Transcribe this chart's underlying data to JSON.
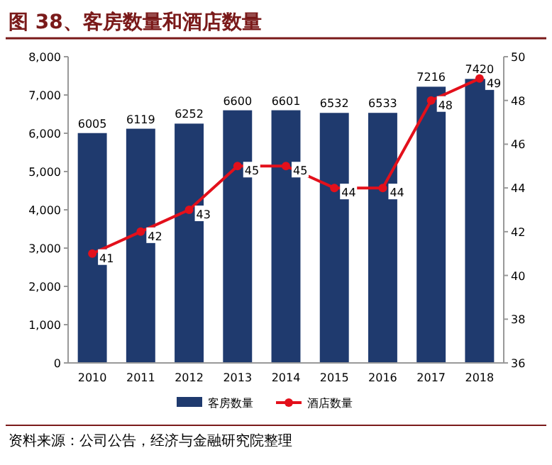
{
  "chart_data": {
    "type": "bar",
    "title": "图 38、客房数量和酒店数量",
    "categories": [
      "2010",
      "2011",
      "2012",
      "2013",
      "2014",
      "2015",
      "2016",
      "2017",
      "2018"
    ],
    "series": [
      {
        "name": "客房数量",
        "color": "#1f3a6e",
        "values": [
          6005,
          6119,
          6252,
          6600,
          6601,
          6532,
          6533,
          7216,
          7420
        ]
      },
      {
        "name": "酒店数量",
        "type": "line",
        "axis": "y2",
        "color": "#e3101b",
        "values": [
          41,
          42,
          43,
          45,
          45,
          44,
          44,
          48,
          49
        ]
      }
    ],
    "ylim": [
      0,
      8000
    ],
    "yticks": [
      {
        "value": 0,
        "label": "0"
      },
      {
        "value": 1000,
        "label": "1,000"
      },
      {
        "value": 2000,
        "label": "2,000"
      },
      {
        "value": 3000,
        "label": "3,000"
      },
      {
        "value": 4000,
        "label": "4,000"
      },
      {
        "value": 5000,
        "label": "5,000"
      },
      {
        "value": 6000,
        "label": "6,000"
      },
      {
        "value": 7000,
        "label": "7,000"
      },
      {
        "value": 8000,
        "label": "8,000"
      }
    ],
    "y2lim": [
      36,
      50
    ],
    "y2ticks": [
      36,
      38,
      40,
      42,
      44,
      46,
      48,
      50
    ],
    "data_labels": true,
    "marker": "circle",
    "line_style": "solid",
    "grid": false,
    "legend": "bottom",
    "annotations": [
      "资料来源：公司公告，经济与金融研究院整理"
    ]
  }
}
